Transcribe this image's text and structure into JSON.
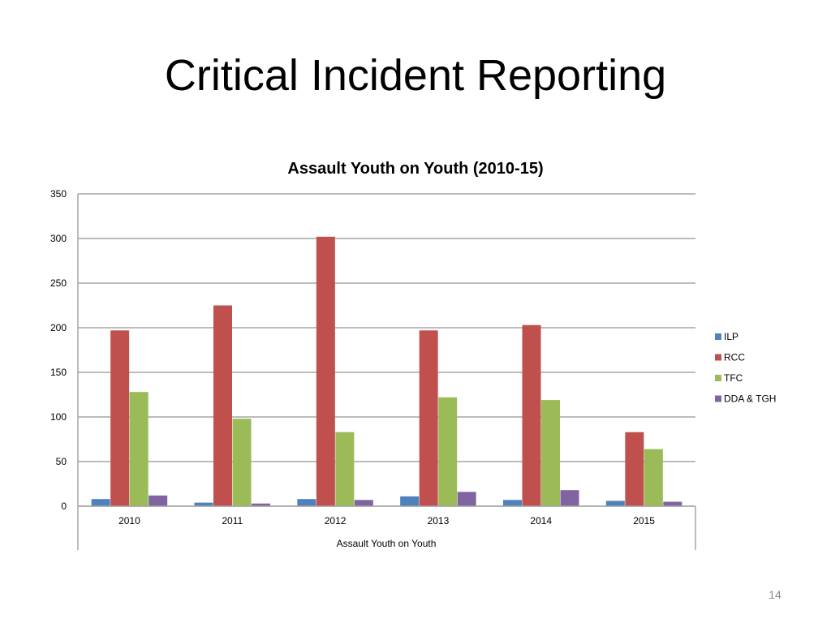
{
  "slide": {
    "title": "Critical Incident Reporting",
    "page_number": "14"
  },
  "chart_data": {
    "type": "bar",
    "title": "Assault Youth on Youth (2010-15)",
    "xlabel": "Assault Youth on Youth",
    "ylabel": "",
    "categories": [
      "2010",
      "2011",
      "2012",
      "2013",
      "2014",
      "2015"
    ],
    "series": [
      {
        "name": "ILP",
        "color": "#4F81BD",
        "values": [
          8,
          4,
          8,
          11,
          7,
          6
        ]
      },
      {
        "name": "RCC",
        "color": "#C0504D",
        "values": [
          197,
          225,
          302,
          197,
          203,
          83
        ]
      },
      {
        "name": "TFC",
        "color": "#9BBB59",
        "values": [
          128,
          98,
          83,
          122,
          119,
          64
        ]
      },
      {
        "name": "DDA & TGH",
        "color": "#8064A2",
        "values": [
          12,
          3,
          7,
          16,
          18,
          5
        ]
      }
    ],
    "ylim": [
      0,
      350
    ],
    "yticks": [
      "0",
      "50",
      "100",
      "150",
      "200",
      "250",
      "300",
      "350"
    ],
    "grid": true,
    "legend_position": "right"
  }
}
